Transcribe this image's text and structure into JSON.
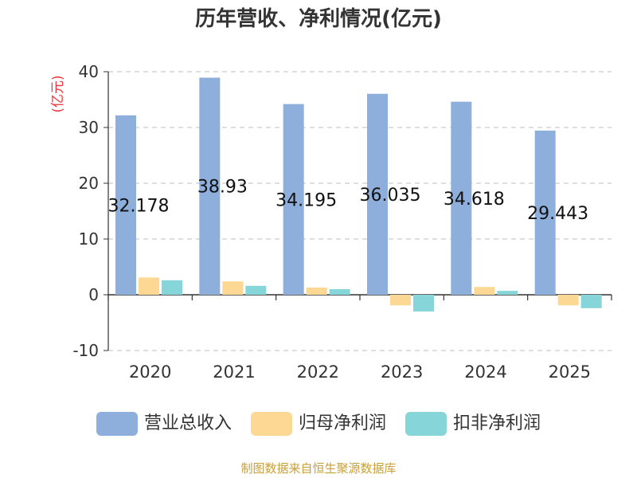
{
  "page_title": "历年营收、净利情况(亿元)",
  "source_note": "制图数据来自恒生聚源数据库",
  "colors": {
    "revenue": "#8eaedb",
    "net_profit": "#fdd894",
    "deducted_net_profit": "#86d5d8",
    "unit_label": "#e8343a",
    "source_note": "#c8a038",
    "grid": "#cccccc",
    "axis": "#333333"
  },
  "chart_data": {
    "type": "bar",
    "title": "历年营收、净利情况(亿元)",
    "ylabel": "(亿元)",
    "ylim": [
      -10,
      40
    ],
    "yticks": [
      40,
      30,
      20,
      10,
      0,
      -10
    ],
    "ytick_labels": [
      "40",
      "30",
      "20",
      "10",
      "0",
      "-10"
    ],
    "grid": true,
    "legend_position": "bottom",
    "categories": [
      "2020",
      "2021",
      "2022",
      "2023",
      "2024",
      "2025"
    ],
    "series": [
      {
        "name": "营业总收入",
        "color_key": "revenue",
        "values": [
          32.178,
          38.93,
          34.195,
          36.035,
          34.618,
          29.443
        ],
        "data_labels": [
          "32.178",
          "38.93",
          "34.195",
          "36.035",
          "34.618",
          "29.443"
        ]
      },
      {
        "name": "归母净利润",
        "color_key": "net_profit",
        "values": [
          3.1,
          2.4,
          1.3,
          -1.9,
          1.4,
          -1.9
        ]
      },
      {
        "name": "扣非净利润",
        "color_key": "deducted_net_profit",
        "values": [
          2.6,
          1.6,
          1.0,
          -3.0,
          0.7,
          -2.4
        ]
      }
    ]
  }
}
